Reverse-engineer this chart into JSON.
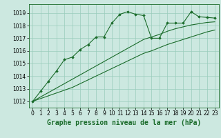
{
  "title": "Graphe pression niveau de la mer (hPa)",
  "background_color": "#cce8e0",
  "plot_bg_color": "#cce8e0",
  "grid_color": "#99ccbb",
  "line_color": "#1a6b2a",
  "marker_color": "#1a6b2a",
  "xlim": [
    -0.5,
    23.5
  ],
  "ylim": [
    1011.5,
    1019.7
  ],
  "yticks": [
    1012,
    1013,
    1014,
    1015,
    1016,
    1017,
    1018,
    1019
  ],
  "xticks": [
    0,
    1,
    2,
    3,
    4,
    5,
    6,
    7,
    8,
    9,
    10,
    11,
    12,
    13,
    14,
    15,
    16,
    17,
    18,
    19,
    20,
    21,
    22,
    23
  ],
  "series1_x": [
    0,
    1,
    2,
    3,
    4,
    5,
    6,
    7,
    8,
    9,
    10,
    11,
    12,
    13,
    14,
    15,
    16,
    17,
    18,
    19,
    20,
    21,
    22,
    23
  ],
  "series1_y": [
    1012.0,
    1012.8,
    1013.6,
    1014.4,
    1015.3,
    1015.5,
    1016.1,
    1016.5,
    1017.1,
    1017.1,
    1018.2,
    1018.9,
    1019.1,
    1018.9,
    1018.8,
    1017.0,
    1017.0,
    1018.2,
    1018.2,
    1018.2,
    1019.1,
    1018.7,
    1018.65,
    1018.6
  ],
  "series2_x": [
    0,
    1,
    2,
    3,
    4,
    5,
    6,
    7,
    8,
    9,
    10,
    11,
    12,
    13,
    14,
    15,
    16,
    17,
    18,
    19,
    20,
    21,
    22,
    23
  ],
  "series2_y": [
    1012.0,
    1012.35,
    1012.7,
    1013.05,
    1013.4,
    1013.75,
    1014.1,
    1014.45,
    1014.8,
    1015.15,
    1015.5,
    1015.85,
    1016.2,
    1016.55,
    1016.9,
    1017.1,
    1017.3,
    1017.55,
    1017.75,
    1017.9,
    1018.05,
    1018.15,
    1018.25,
    1018.3
  ],
  "series3_x": [
    0,
    1,
    2,
    3,
    4,
    5,
    6,
    7,
    8,
    9,
    10,
    11,
    12,
    13,
    14,
    15,
    16,
    17,
    18,
    19,
    20,
    21,
    22,
    23
  ],
  "series3_y": [
    1012.0,
    1012.22,
    1012.44,
    1012.66,
    1012.88,
    1013.1,
    1013.4,
    1013.7,
    1014.0,
    1014.3,
    1014.6,
    1014.9,
    1015.2,
    1015.5,
    1015.8,
    1016.0,
    1016.25,
    1016.5,
    1016.7,
    1016.9,
    1017.1,
    1017.3,
    1017.5,
    1017.65
  ],
  "title_fontsize": 7,
  "tick_fontsize": 5.5
}
